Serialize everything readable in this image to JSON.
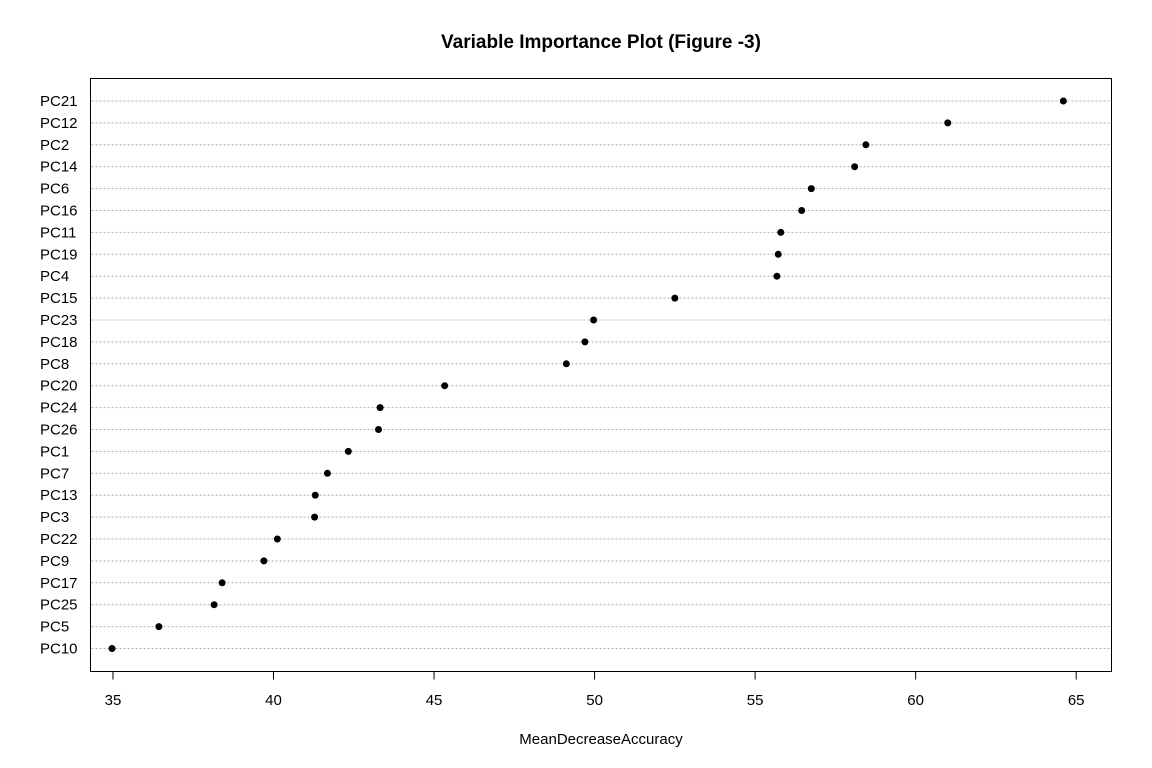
{
  "chart_data": {
    "type": "scatter",
    "title": "Variable Importance Plot (Figure -3)",
    "xlabel": "MeanDecreaseAccuracy",
    "ylabel": "",
    "xlim": [
      34.3,
      66.1
    ],
    "xticks": [
      35,
      40,
      45,
      50,
      55,
      60,
      65
    ],
    "grid": "horizontal dotted",
    "categories": [
      "PC21",
      "PC12",
      "PC2",
      "PC14",
      "PC6",
      "PC16",
      "PC11",
      "PC19",
      "PC4",
      "PC15",
      "PC23",
      "PC18",
      "PC8",
      "PC20",
      "PC24",
      "PC26",
      "PC1",
      "PC7",
      "PC13",
      "PC3",
      "PC22",
      "PC9",
      "PC17",
      "PC25",
      "PC5",
      "PC10"
    ],
    "values": [
      64.6,
      61.0,
      58.45,
      58.1,
      56.75,
      56.45,
      55.8,
      55.72,
      55.68,
      52.5,
      49.97,
      49.7,
      49.12,
      45.33,
      43.32,
      43.27,
      42.33,
      41.68,
      41.3,
      41.28,
      40.12,
      39.7,
      38.4,
      38.15,
      36.43,
      34.97
    ]
  }
}
